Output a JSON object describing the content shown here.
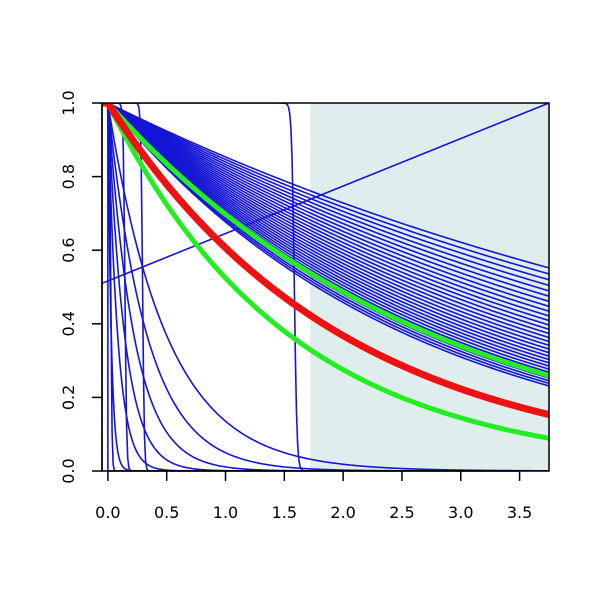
{
  "chart_data": {
    "type": "line",
    "title": "",
    "xlabel": "",
    "ylabel": "",
    "xlim": [
      -0.05,
      3.75
    ],
    "ylim": [
      0.0,
      1.0
    ],
    "x_ticks": [
      0.0,
      0.5,
      1.0,
      1.5,
      2.0,
      2.5,
      3.0,
      3.5
    ],
    "x_tick_labels": [
      "0.0",
      "0.5",
      "1.0",
      "1.5",
      "2.0",
      "2.5",
      "3.0",
      "3.5"
    ],
    "y_ticks": [
      0.0,
      0.2,
      0.4,
      0.6,
      0.8,
      1.0
    ],
    "y_tick_labels": [
      "0.0",
      "0.2",
      "0.4",
      "0.6",
      "0.8",
      "1.0"
    ],
    "shaded_region": {
      "x_from": 1.72,
      "x_to": 3.75,
      "color": "#e0eded"
    },
    "grid": false,
    "legend": "none",
    "colors": {
      "blue": "#1515d6",
      "red": "#ee1111",
      "green": "#22ee22"
    },
    "series_blue_exponential": {
      "description_rates": [
        0.1585,
        0.1665,
        0.1745,
        0.1825,
        0.1905,
        0.1985,
        0.2065,
        0.2145,
        0.2225,
        0.2305,
        0.2385,
        0.2465,
        0.2545,
        0.2625,
        0.2705,
        0.2785,
        0.2865,
        0.2945,
        0.3025,
        0.3105,
        0.3185,
        0.3265,
        0.3345,
        0.3425,
        0.3505,
        0.3585,
        0.3665,
        0.3745,
        0.3825,
        0.3905
      ],
      "formula": "y = exp(-rate * x)"
    },
    "series_blue_steep": {
      "rates": [
        2.0,
        3.0,
        4.5,
        7.0,
        12.0,
        35.0
      ],
      "formula": "y = exp(-rate * x)"
    },
    "series_blue_step": {
      "centers": [
        0.025,
        0.145,
        0.295,
        1.585
      ],
      "steepness": [
        200,
        140,
        140,
        90
      ],
      "formula": "y = 1 / (1 + exp(s * (x - c)))"
    },
    "series_blue_rising": {
      "x": [
        -0.05,
        3.75
      ],
      "y": [
        0.51,
        1.0
      ]
    },
    "series_red": {
      "values_formula": "y = exp(-0.5 * x)"
    },
    "series_green": [
      {
        "formula": "y = exp(-0.36 * x)"
      },
      {
        "formula": "y = exp(-0.645 * x)"
      }
    ]
  }
}
